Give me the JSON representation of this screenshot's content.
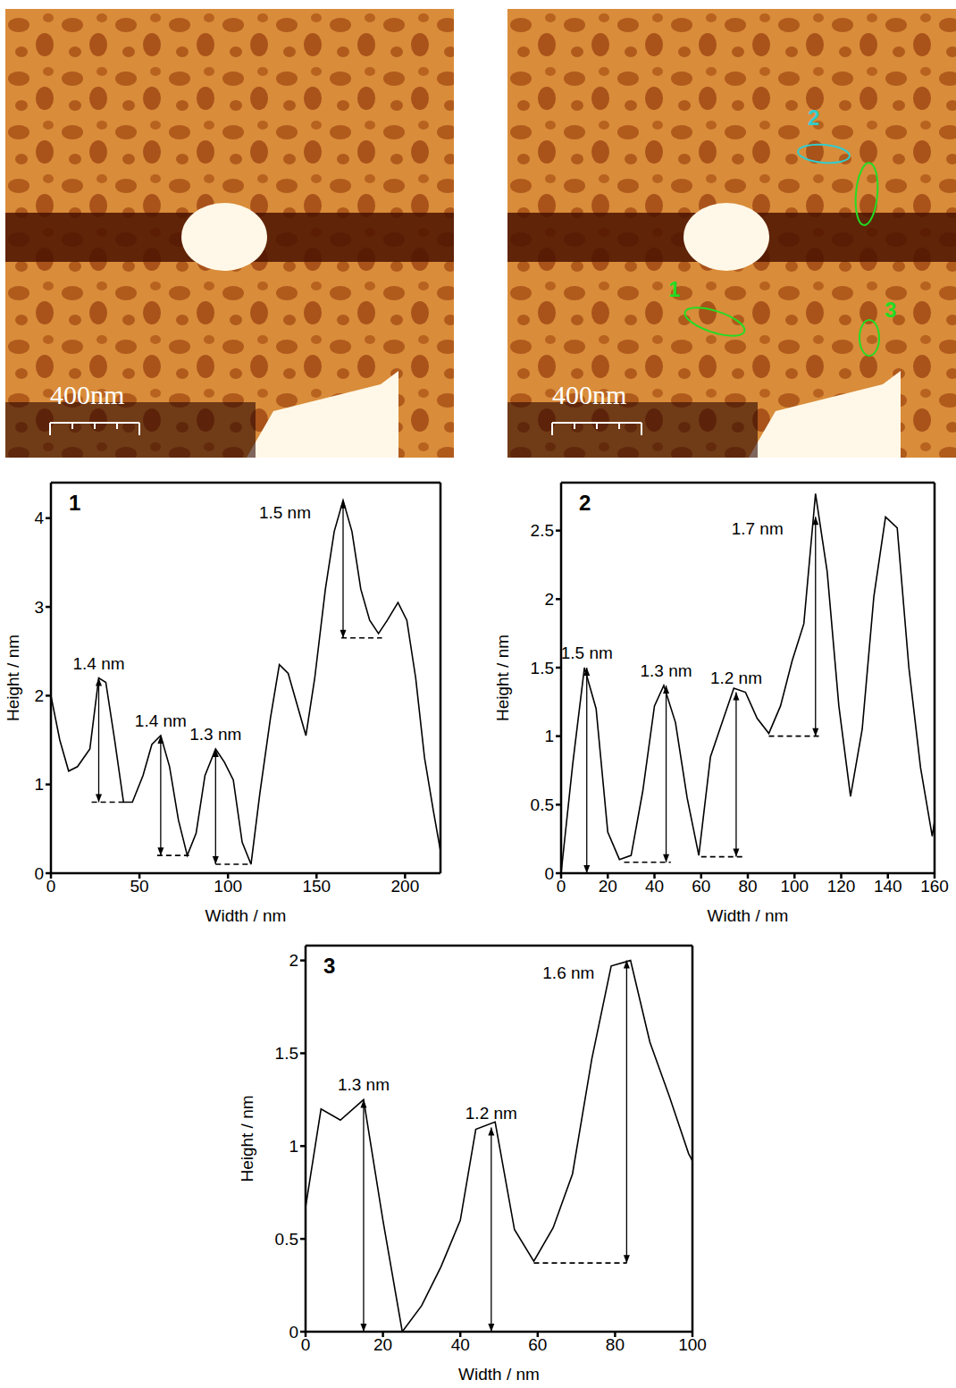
{
  "images": [
    {
      "scale_bar": "400nm"
    },
    {
      "scale_bar": "400nm",
      "regions": [
        {
          "label": "1",
          "color": "#22dd22"
        },
        {
          "label": "2",
          "color": "#33cccc"
        },
        {
          "label": "3",
          "color": "#22dd22"
        }
      ]
    }
  ],
  "chart_data": [
    {
      "type": "line",
      "title": "1",
      "x_label": "Width / nm",
      "y_label": "Height / nm",
      "color": "#000000",
      "x": [
        0,
        5,
        10,
        15,
        22,
        27,
        31,
        36,
        41,
        46,
        52,
        57,
        62,
        67,
        72,
        77,
        82,
        87,
        93,
        98,
        103,
        108,
        113,
        118,
        124,
        129,
        134,
        139,
        144,
        149,
        155,
        160,
        165,
        170,
        175,
        180,
        185,
        190,
        196,
        201,
        206,
        211,
        216,
        220
      ],
      "values": [
        2.0,
        1.5,
        1.15,
        1.2,
        1.4,
        2.2,
        2.15,
        1.5,
        0.8,
        0.8,
        1.1,
        1.45,
        1.55,
        1.2,
        0.6,
        0.2,
        0.45,
        1.1,
        1.4,
        1.25,
        1.05,
        0.35,
        0.1,
        0.9,
        1.75,
        2.35,
        2.25,
        1.9,
        1.55,
        2.2,
        3.2,
        3.85,
        4.2,
        3.85,
        3.2,
        2.85,
        2.7,
        2.85,
        3.05,
        2.85,
        2.2,
        1.3,
        0.7,
        0.25
      ],
      "xlim": [
        0,
        220
      ],
      "xticks": [
        0,
        50,
        100,
        150,
        200
      ],
      "ylim": [
        0,
        4.4
      ],
      "yticks": [
        0,
        1,
        2,
        3,
        4
      ],
      "annotations": [
        {
          "label": "1.4 nm",
          "x": 27,
          "top": 2.2,
          "base": 0.8,
          "base_x": [
            23,
            41
          ]
        },
        {
          "label": "1.4 nm",
          "x": 62,
          "top": 1.55,
          "base": 0.2,
          "base_x": [
            60,
            78
          ]
        },
        {
          "label": "1.3 nm",
          "x": 93,
          "top": 1.4,
          "base": 0.1,
          "base_x": [
            93,
            112
          ]
        },
        {
          "label": "1.5 nm",
          "x": 165,
          "top": 4.2,
          "base": 2.65,
          "base_x": [
            164,
            187
          ]
        }
      ]
    },
    {
      "type": "line",
      "title": "2",
      "x_label": "Width / nm",
      "y_label": "Height / nm",
      "color": "#000000",
      "x": [
        0,
        5,
        10,
        15,
        20,
        25,
        30,
        35,
        40,
        44,
        49,
        54,
        59,
        64,
        69,
        74,
        79,
        84,
        89,
        94,
        99,
        104,
        109,
        114,
        119,
        124,
        129,
        134,
        139,
        144,
        149,
        154,
        159,
        160
      ],
      "values": [
        0.0,
        0.8,
        1.5,
        1.2,
        0.3,
        0.1,
        0.13,
        0.6,
        1.22,
        1.37,
        1.1,
        0.55,
        0.13,
        0.85,
        1.1,
        1.35,
        1.32,
        1.13,
        1.02,
        1.22,
        1.55,
        1.82,
        2.77,
        2.2,
        1.22,
        0.56,
        1.05,
        2.02,
        2.6,
        2.52,
        1.5,
        0.77,
        0.27,
        0.38
      ],
      "xlim": [
        0,
        160
      ],
      "xticks": [
        0,
        20,
        40,
        60,
        80,
        100,
        120,
        140,
        160
      ],
      "ylim": [
        0,
        2.85
      ],
      "yticks": [
        0,
        0.5,
        1,
        1.5,
        2,
        2.5
      ],
      "annotations": [
        {
          "label": "1.5 nm",
          "x": 11,
          "top": 1.5,
          "base": 0,
          "base_x": null
        },
        {
          "label": "1.3 nm",
          "x": 45,
          "top": 1.37,
          "base": 0.08,
          "base_x": [
            27,
            47
          ]
        },
        {
          "label": "1.2 nm",
          "x": 75,
          "top": 1.32,
          "base": 0.12,
          "base_x": [
            60,
            78
          ]
        },
        {
          "label": "1.7 nm",
          "x": 109,
          "top": 2.6,
          "base": 1.0,
          "base_x": [
            89,
            111
          ]
        }
      ]
    },
    {
      "type": "line",
      "title": "3",
      "x_label": "Width / nm",
      "y_label": "Height / nm",
      "color": "#000000",
      "x": [
        0,
        4,
        9,
        15,
        20,
        25,
        30,
        35,
        40,
        44,
        49,
        54,
        59,
        64,
        69,
        74,
        79,
        84,
        89,
        94,
        99,
        100
      ],
      "values": [
        0.67,
        1.2,
        1.14,
        1.25,
        0.6,
        0.0,
        0.14,
        0.35,
        0.6,
        1.09,
        1.13,
        0.55,
        0.38,
        0.56,
        0.85,
        1.47,
        1.97,
        2.0,
        1.56,
        1.27,
        0.96,
        0.92
      ],
      "xlim": [
        0,
        100
      ],
      "xticks": [
        0,
        20,
        40,
        60,
        80,
        100
      ],
      "ylim": [
        0,
        2.08
      ],
      "yticks": [
        0,
        0.5,
        1,
        1.5,
        2
      ],
      "annotations": [
        {
          "label": "1.3 nm",
          "x": 15,
          "top": 1.25,
          "base": 0,
          "base_x": null
        },
        {
          "label": "1.2 nm",
          "x": 48,
          "top": 1.1,
          "base": 0,
          "base_x": null
        },
        {
          "label": "1.6 nm",
          "x": 83,
          "top": 2.0,
          "base": 0.37,
          "base_x": [
            59,
            83
          ]
        }
      ]
    }
  ]
}
